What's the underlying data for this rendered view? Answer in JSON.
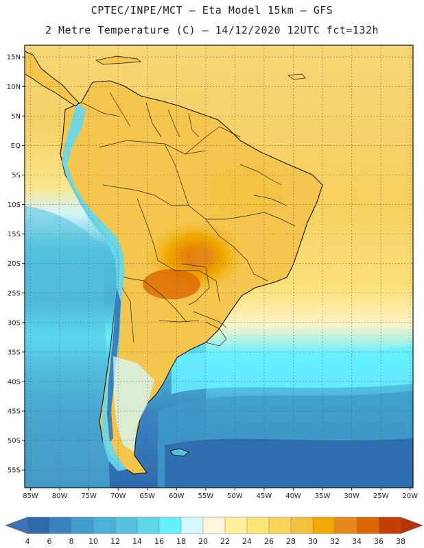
{
  "header": {
    "title_line1": "CPTEC/INPE/MCT —  Eta Model 15km — GFS",
    "title_line2": "2 Metre Temperature (C) — 14/12/2020 12UTC fct=132h"
  },
  "map": {
    "region": "South America",
    "lat_labels": [
      "15N",
      "10N",
      "5N",
      "EQ",
      "5S",
      "10S",
      "15S",
      "20S",
      "25S",
      "30S",
      "35S",
      "40S",
      "45S",
      "50S",
      "55S"
    ],
    "lat_values": [
      15,
      10,
      5,
      0,
      -5,
      -10,
      -15,
      -20,
      -25,
      -30,
      -35,
      -40,
      -45,
      -50,
      -55
    ],
    "lon_labels": [
      "85W",
      "80W",
      "75W",
      "70W",
      "65W",
      "60W",
      "55W",
      "50W",
      "45W",
      "40W",
      "35W",
      "30W",
      "25W",
      "20W"
    ],
    "lon_values": [
      -85,
      -80,
      -75,
      -70,
      -65,
      -60,
      -55,
      -50,
      -45,
      -40,
      -35,
      -30,
      -25,
      -20
    ],
    "lat_range": [
      -58,
      17
    ],
    "lon_range": [
      -86,
      -19.5
    ],
    "grid": true
  },
  "colorbar": {
    "labels": [
      "4",
      "6",
      "8",
      "10",
      "12",
      "14",
      "16",
      "18",
      "20",
      "22",
      "24",
      "26",
      "28",
      "30",
      "32",
      "34",
      "36",
      "38"
    ],
    "colors": [
      "#2e6aac",
      "#3a82bf",
      "#3f9ccb",
      "#4bb1d6",
      "#54c2dc",
      "#60d8e8",
      "#66f0ff",
      "#d4f8ff",
      "#fff6dc",
      "#fff09a",
      "#fde577",
      "#f8d45a",
      "#f2c23e",
      "#f0a800",
      "#e8881a",
      "#dc6600",
      "#c43e00"
    ],
    "low_arrow_color": "#3a74b4",
    "high_arrow_color": "#b83408"
  }
}
